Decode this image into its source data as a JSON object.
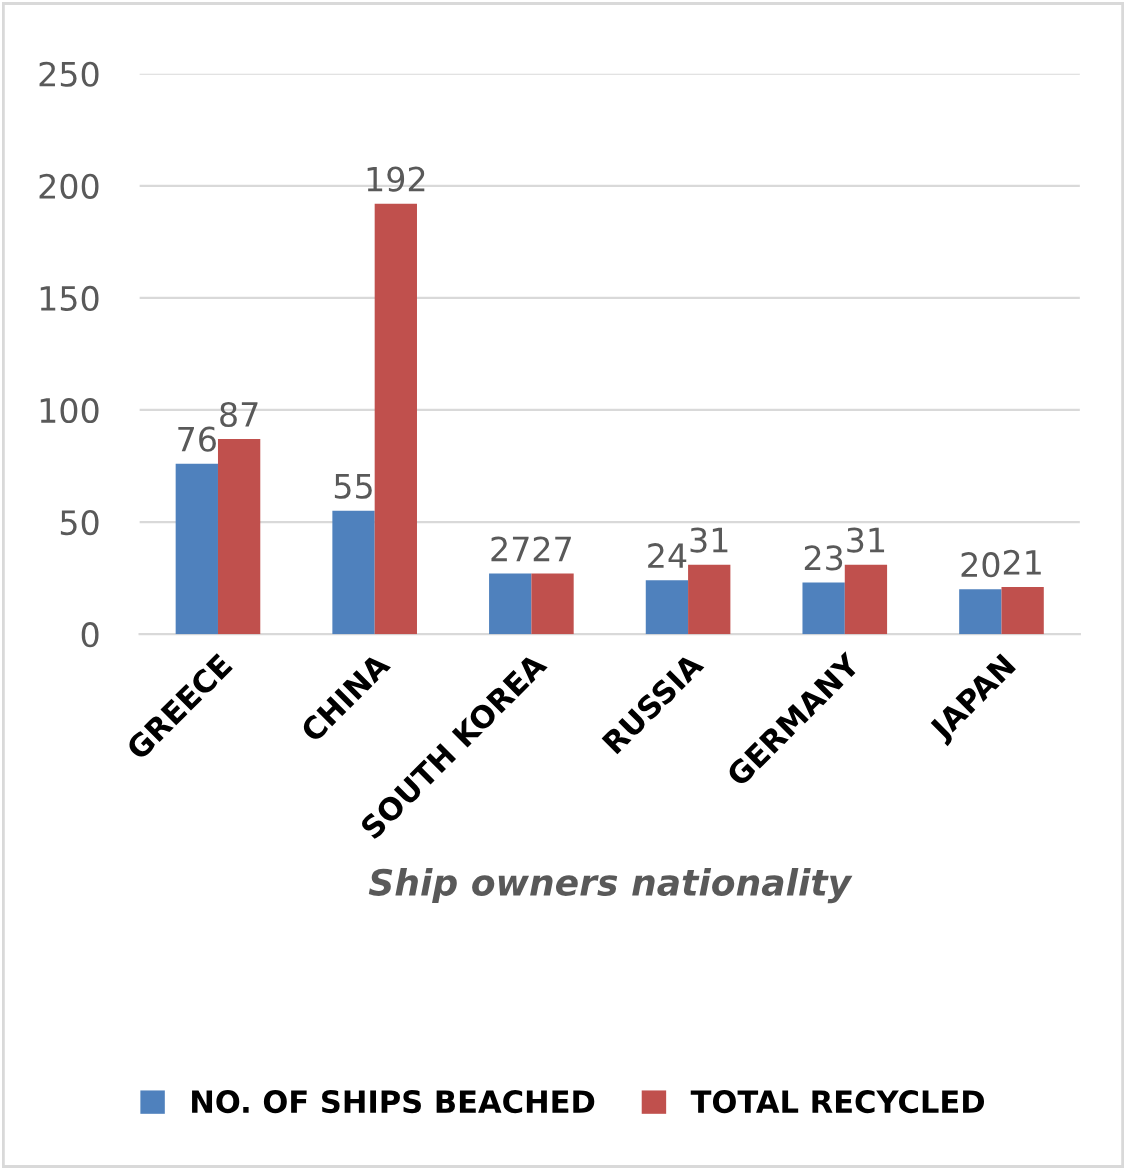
{
  "chart_data": {
    "type": "bar",
    "xlabel": "Ship owners nationality",
    "categories": [
      "GREECE",
      "CHINA",
      "SOUTH KOREA",
      "RUSSIA",
      "GERMANY",
      "JAPAN"
    ],
    "series": [
      {
        "name": "NO. OF SHIPS BEACHED",
        "color": "#4f81bd",
        "values": [
          76,
          55,
          27,
          24,
          23,
          20
        ]
      },
      {
        "name": "TOTAL RECYCLED",
        "color": "#c0504d",
        "values": [
          87,
          192,
          27,
          31,
          31,
          21
        ]
      }
    ],
    "ylim": [
      0,
      250
    ],
    "yticks": [
      0,
      50,
      100,
      150,
      200,
      250
    ],
    "grid": "y",
    "legend": "bottom",
    "data_labels": true
  }
}
